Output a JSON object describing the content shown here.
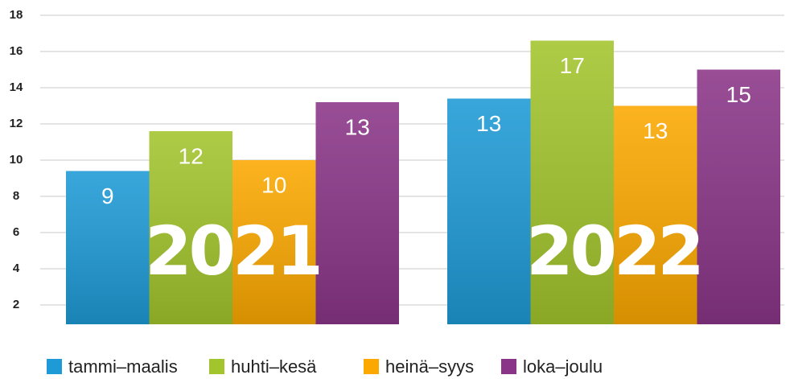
{
  "chart_data": {
    "type": "bar",
    "categories": [
      "2021",
      "2022"
    ],
    "series": [
      {
        "name": "tammi–maalis",
        "color": "#1e9ad6",
        "values": [
          9.4,
          13.4
        ],
        "value_labels": [
          "9",
          "13"
        ]
      },
      {
        "name": "huhti–kesä",
        "color": "#a2c42c",
        "values": [
          11.6,
          16.6
        ],
        "value_labels": [
          "12",
          "17"
        ]
      },
      {
        "name": "heinä–syys",
        "color": "#fba800",
        "values": [
          10,
          13
        ],
        "value_labels": [
          "10",
          "13"
        ]
      },
      {
        "name": "loka–joulu",
        "color": "#8a3587",
        "values": [
          13.2,
          15
        ],
        "value_labels": [
          "13",
          "15"
        ]
      }
    ],
    "ylim": [
      1,
      18
    ],
    "yticks": [
      2,
      4,
      6,
      8,
      10,
      12,
      14,
      16,
      18
    ],
    "grid": true,
    "legend": "bottom"
  }
}
